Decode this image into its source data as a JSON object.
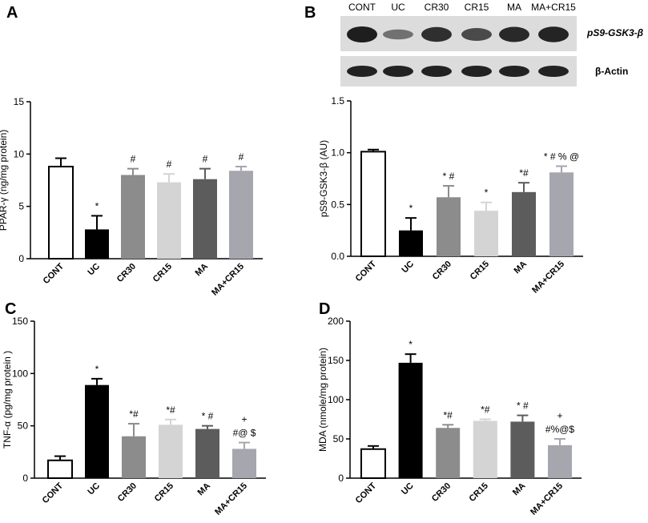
{
  "categories": [
    "CONT",
    "UC",
    "CR30",
    "CR15",
    "MA",
    "MA+CR15"
  ],
  "bar_colors": [
    "#ffffff",
    "#000000",
    "#8c8c8c",
    "#d4d4d4",
    "#5c5c5c",
    "#a6a6ae"
  ],
  "blot": {
    "lane_labels": [
      "CONT",
      "UC",
      "CR30",
      "CR15",
      "MA",
      "MA+CR15"
    ],
    "protein_labels": [
      "pS9-GSK3-β",
      "β-Actin"
    ],
    "phospho_intensity": [
      1.0,
      0.25,
      0.85,
      0.6,
      0.9,
      0.95
    ]
  },
  "chart_data": [
    {
      "panel_label": "A",
      "type": "bar",
      "ylabel": "PPAR-γ (ng/mg protein)",
      "ylim": [
        0,
        15
      ],
      "yticks": [
        0,
        5,
        10,
        15
      ],
      "values": [
        8.8,
        2.8,
        8.0,
        7.3,
        7.6,
        8.4
      ],
      "errors": [
        0.8,
        1.3,
        0.6,
        0.8,
        1.0,
        0.4
      ],
      "annotations": [
        "",
        "*",
        "#",
        "#",
        "#",
        "#"
      ]
    },
    {
      "panel_label": "B",
      "type": "bar",
      "ylabel": "pS9-GSK3-β (AU)",
      "ylim": [
        0,
        1.5
      ],
      "yticks": [
        0.0,
        0.5,
        1.0,
        1.5
      ],
      "values": [
        1.01,
        0.25,
        0.57,
        0.44,
        0.62,
        0.81
      ],
      "errors": [
        0.02,
        0.12,
        0.11,
        0.08,
        0.09,
        0.06
      ],
      "annotations": [
        "",
        "*",
        "* #",
        "*",
        "*#",
        "* # % @"
      ]
    },
    {
      "panel_label": "C",
      "type": "bar",
      "ylabel": "TNF-α (pg/mg protein )",
      "ylim": [
        0,
        150
      ],
      "yticks": [
        0,
        50,
        100,
        150
      ],
      "values": [
        17,
        89,
        40,
        51,
        47,
        28
      ],
      "errors": [
        4,
        6,
        12,
        5,
        3,
        6
      ],
      "annotations": [
        "",
        "*",
        "*#",
        "*#",
        "* #",
        "+|#@ $"
      ]
    },
    {
      "panel_label": "D",
      "type": "bar",
      "ylabel": "MDA (nmole/mg protein)",
      "ylim": [
        0,
        200
      ],
      "yticks": [
        0,
        50,
        100,
        150,
        200
      ],
      "values": [
        37,
        147,
        64,
        73,
        72,
        42
      ],
      "errors": [
        4,
        11,
        4,
        2,
        8,
        8
      ],
      "annotations": [
        "",
        "*",
        "*#",
        "*#",
        "* #",
        "+|#%@$"
      ]
    }
  ]
}
